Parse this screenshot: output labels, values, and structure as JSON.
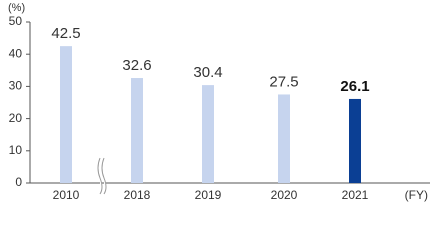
{
  "chart_data": {
    "type": "bar",
    "y_unit": "(%)",
    "x_unit": "(FY)",
    "categories": [
      "2010",
      "2018",
      "2019",
      "2020",
      "2021"
    ],
    "values": [
      42.5,
      32.6,
      30.4,
      27.5,
      26.1
    ],
    "colors": [
      "#c6d4ee",
      "#c6d4ee",
      "#c6d4ee",
      "#c6d4ee",
      "#0b3f94"
    ],
    "ylim": [
      0,
      50
    ],
    "yticks": [
      0,
      10,
      20,
      30,
      40,
      50
    ],
    "grid": false
  }
}
